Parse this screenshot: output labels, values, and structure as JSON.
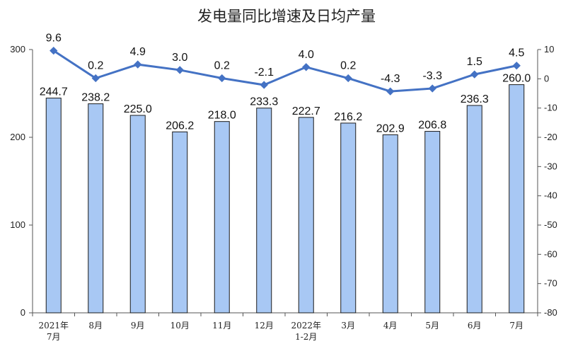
{
  "chart_data": {
    "type": "bar",
    "title": "发电量同比增速及日均产量",
    "categories": [
      [
        "2021年",
        "7月"
      ],
      [
        "8月"
      ],
      [
        "9月"
      ],
      [
        "10月"
      ],
      [
        "11月"
      ],
      [
        "12月"
      ],
      [
        "2022年",
        "1-2月"
      ],
      [
        "3月"
      ],
      [
        "4月"
      ],
      [
        "5月"
      ],
      [
        "6月"
      ],
      [
        "7月"
      ]
    ],
    "series": [
      {
        "chart": "bar",
        "axis": "left",
        "values": [
          244.7,
          238.2,
          225.0,
          206.2,
          218.0,
          233.3,
          222.7,
          216.2,
          202.9,
          206.8,
          236.3,
          260.0
        ],
        "labels": [
          "244.7",
          "238.2",
          "225.0",
          "206.2",
          "218.0",
          "233.3",
          "222.7",
          "216.2",
          "202.9",
          "206.8",
          "236.3",
          "260.0"
        ],
        "color": "#a8c8f4",
        "border": "#1a1a1a"
      },
      {
        "chart": "line",
        "axis": "right",
        "values": [
          9.6,
          0.2,
          4.9,
          3.0,
          0.2,
          -2.1,
          4.0,
          0.2,
          -4.3,
          -3.3,
          1.5,
          4.5
        ],
        "labels": [
          "9.6",
          "0.2",
          "4.9",
          "3.0",
          "0.2",
          "-2.1",
          "4.0",
          "0.2",
          "-4.3",
          "-3.3",
          "1.5",
          "4.5"
        ],
        "color": "#4472c4"
      }
    ],
    "y_left": {
      "ylim": [
        0,
        300
      ],
      "ticks": [
        "0",
        "100",
        "200",
        "300"
      ]
    },
    "y_right": {
      "ylim": [
        -80,
        10
      ],
      "ticks": [
        "10",
        "0",
        "-10",
        "-20",
        "-30",
        "-40",
        "-50",
        "-60",
        "-70",
        "-80"
      ]
    },
    "grid": false,
    "legend": "none"
  }
}
